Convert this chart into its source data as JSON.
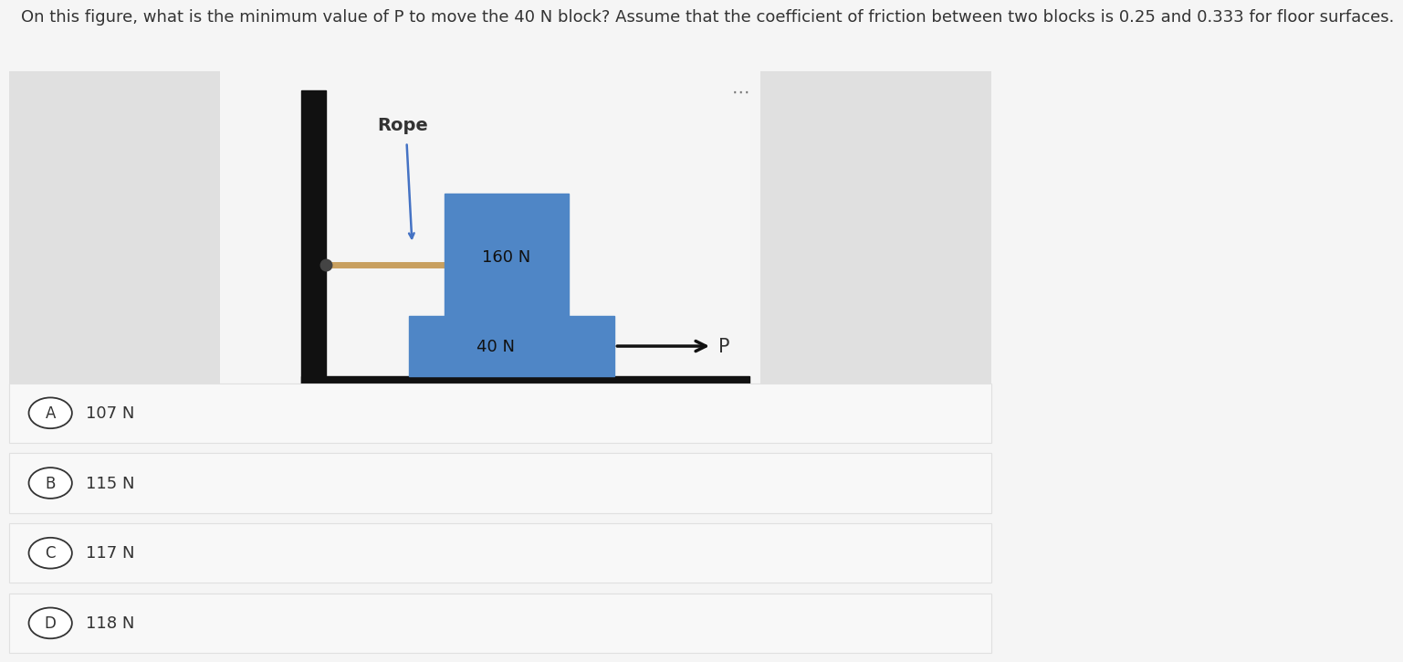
{
  "question_text": "On this figure, what is the minimum value of P to move the 40 N block? Assume that the coefficient of friction between two blocks is 0.25 and 0.333 for floor surfaces.",
  "choices": [
    {
      "label": "A",
      "text": "107 N"
    },
    {
      "label": "B",
      "text": "115 N"
    },
    {
      "label": "C",
      "text": "117 N"
    },
    {
      "label": "D",
      "text": "118 N"
    }
  ],
  "page_bg": "#f5f5f5",
  "diagram_bg": "#ffffff",
  "side_panel_bg": "#e0e0e0",
  "block_color": "#4f86c6",
  "wall_color": "#111111",
  "floor_color": "#111111",
  "rope_color": "#c8a060",
  "knot_color": "#444444",
  "arrow_color": "#111111",
  "rope_arrow_color": "#4472c4",
  "block_text_color": "#111111",
  "text_color": "#333333",
  "dots_color": "#777777",
  "choice_bg": "#f8f8f8",
  "choice_border": "#e0e0e0",
  "circle_bg": "#ffffff",
  "question_fontsize": 13,
  "choice_fontsize": 13,
  "label_fontsize": 12,
  "block_label_fontsize": 13,
  "rope_label_fontsize": 14
}
